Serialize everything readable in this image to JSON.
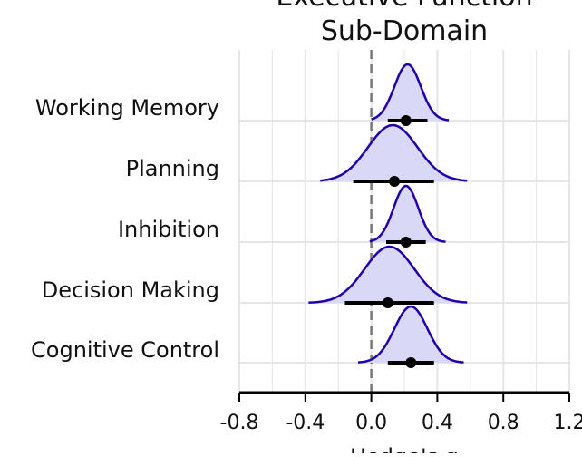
{
  "chart_data": {
    "type": "density-interval",
    "title_lines": [
      "Executive Function",
      "Sub-Domain"
    ],
    "xlabel": "Hedge's g",
    "xlim": [
      -0.8,
      1.2
    ],
    "xticks": [
      "-0.8",
      "-0.4",
      "0.0",
      "0.4",
      "0.8",
      "1.2"
    ],
    "xtick_values": [
      -0.8,
      -0.4,
      0.0,
      0.4,
      0.8,
      1.2
    ],
    "reference_line_x": 0.0,
    "grid": true,
    "colors": {
      "density_fill": "#d9d9f7",
      "density_line": "#2200aa",
      "point": "#000000",
      "interval": "#000000",
      "grid": "#e6e6e6",
      "reference_line": "#777777"
    },
    "categories": [
      "Working Memory",
      "Planning",
      "Inhibition",
      "Decision Making",
      "Cognitive Control"
    ],
    "estimates": [
      {
        "name": "Working Memory",
        "point": 0.21,
        "ci_low": 0.1,
        "ci_high": 0.34,
        "density_range": [
          0.0,
          0.47
        ],
        "peak": 0.22,
        "spread": 0.08
      },
      {
        "name": "Planning",
        "point": 0.14,
        "ci_low": -0.11,
        "ci_high": 0.38,
        "density_range": [
          -0.31,
          0.58
        ],
        "peak": 0.13,
        "spread": 0.15
      },
      {
        "name": "Inhibition",
        "point": 0.21,
        "ci_low": 0.09,
        "ci_high": 0.33,
        "density_range": [
          -0.01,
          0.45
        ],
        "peak": 0.21,
        "spread": 0.075
      },
      {
        "name": "Decision Making",
        "point": 0.1,
        "ci_low": -0.16,
        "ci_high": 0.38,
        "density_range": [
          -0.38,
          0.58
        ],
        "peak": 0.11,
        "spread": 0.15
      },
      {
        "name": "Cognitive Control",
        "point": 0.24,
        "ci_low": 0.1,
        "ci_high": 0.38,
        "density_range": [
          -0.08,
          0.56
        ],
        "peak": 0.24,
        "spread": 0.1
      }
    ]
  }
}
